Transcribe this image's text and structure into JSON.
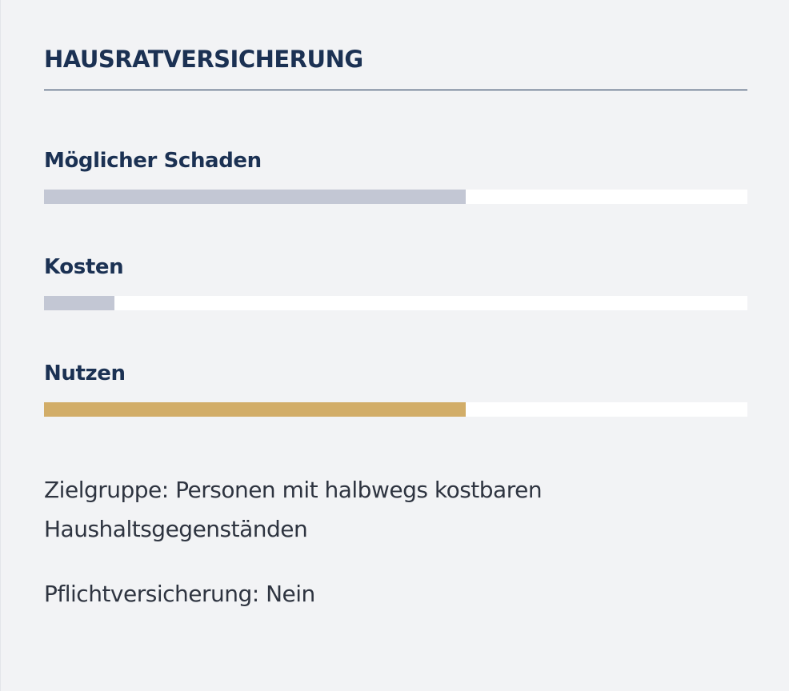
{
  "card": {
    "title": "HAUSRATVERSICHERUNG",
    "metrics": [
      {
        "label": "Möglicher Schaden",
        "level": 0.6,
        "fill_color": "#c3c7d4"
      },
      {
        "label": "Kosten",
        "level": 0.1,
        "fill_color": "#c3c7d4"
      },
      {
        "label": "Nutzen",
        "level": 0.6,
        "fill_color": "#d2ad68"
      }
    ],
    "target_group": "Zielgruppe: Personen mit halbwegs kostbaren Haushaltsgegenständen",
    "mandatory": "Pflichtversicherung: Nein"
  },
  "colors": {
    "background": "#f2f3f5",
    "heading": "#1b3153",
    "body_text": "#2e3440",
    "track": "#ffffff"
  }
}
